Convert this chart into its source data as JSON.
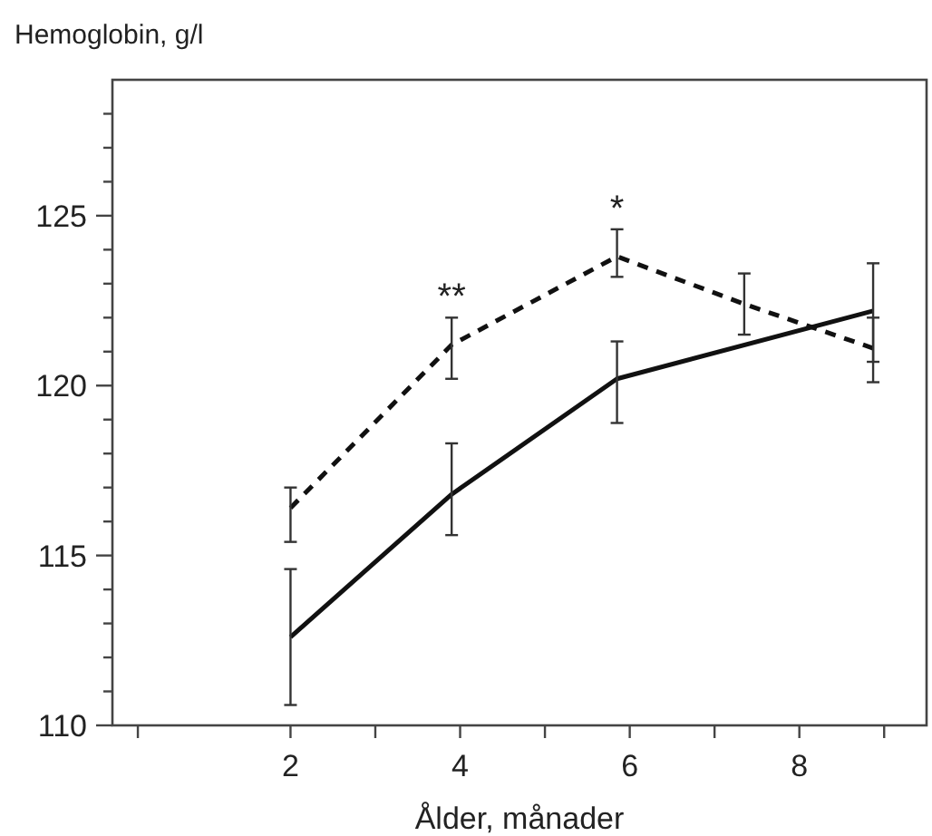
{
  "chart_data": {
    "type": "line",
    "ylabel": "Hemoglobin, g/l",
    "xlabel": "Ålder, månader",
    "xlim": [
      -0.1,
      9.5
    ],
    "ylim": [
      110,
      129
    ],
    "xticks": [
      {
        "value": 0.2,
        "label": null
      },
      2,
      {
        "value": 3,
        "label": null
      },
      4,
      {
        "value": 5,
        "label": null
      },
      6,
      {
        "value": 7,
        "label": null
      },
      8,
      {
        "value": 9,
        "label": null
      }
    ],
    "yticks": [
      110,
      {
        "value": 111,
        "label": null
      },
      {
        "value": 112,
        "label": null
      },
      {
        "value": 113,
        "label": null
      },
      {
        "value": 114,
        "label": null
      },
      115,
      {
        "value": 116,
        "label": null
      },
      {
        "value": 117,
        "label": null
      },
      {
        "value": 118,
        "label": null
      },
      {
        "value": 119,
        "label": null
      },
      120,
      {
        "value": 121,
        "label": null
      },
      {
        "value": 122,
        "label": null
      },
      {
        "value": 123,
        "label": null
      },
      {
        "value": 124,
        "label": null
      },
      125,
      {
        "value": 126,
        "label": null
      },
      {
        "value": 127,
        "label": null
      },
      {
        "value": 128,
        "label": null
      }
    ],
    "grid": false,
    "marker": "none",
    "series": [
      {
        "color": "#111111",
        "line_style": "solid",
        "x": [
          2,
          3.9,
          5.85,
          8.87
        ],
        "values": [
          112.6,
          116.8,
          120.2,
          122.2
        ],
        "errors": [
          [
            110.6,
            114.6
          ],
          [
            115.6,
            118.3
          ],
          [
            118.9,
            121.3
          ],
          [
            120.7,
            123.6
          ]
        ]
      },
      {
        "color": "#111111",
        "line_style": "dashed",
        "x": [
          2,
          3.9,
          5.85,
          7.35,
          8.87
        ],
        "values": [
          116.4,
          121.2,
          123.8,
          122.4,
          121.1
        ],
        "errors": [
          [
            115.4,
            117.0
          ],
          [
            120.2,
            122.0
          ],
          [
            123.2,
            124.6
          ],
          [
            121.5,
            123.3
          ],
          [
            120.1,
            122.0
          ]
        ]
      }
    ],
    "annotations": [
      {
        "text": "**",
        "x": 3.9,
        "y": 121.2
      },
      {
        "text": "*",
        "x": 5.85,
        "y": 123.8
      }
    ]
  }
}
